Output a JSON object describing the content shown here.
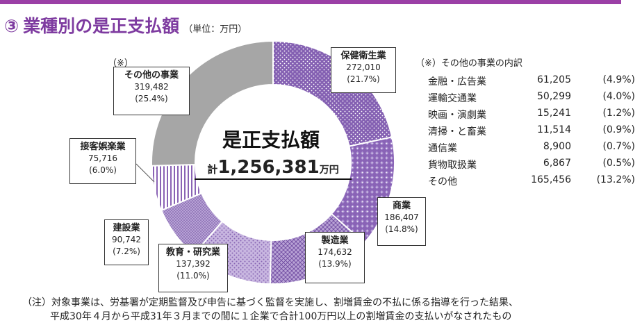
{
  "header": {
    "number": "③",
    "title": "業種別の是正支払額",
    "unit": "（単位：万円）"
  },
  "note_mark": "（※）",
  "center": {
    "title": "是正支払額",
    "total_prefix": "計",
    "total_value": "1,256,381",
    "total_suffix": "万円"
  },
  "breakdown": {
    "title": "（※）その他の事業の内訳",
    "rows": [
      {
        "name": "金融・広告業",
        "value": "61,205",
        "pct": "(4.9%)"
      },
      {
        "name": "運輸交通業",
        "value": "50,299",
        "pct": "(4.0%)"
      },
      {
        "name": "映画・演劇業",
        "value": "15,241",
        "pct": "(1.2%)"
      },
      {
        "name": "清掃・と畜業",
        "value": "11,514",
        "pct": "(0.9%)"
      },
      {
        "name": "通信業",
        "value": "8,900",
        "pct": "(0.7%)"
      },
      {
        "name": "貨物取扱業",
        "value": "6,867",
        "pct": "(0.5%)"
      },
      {
        "name": "その他",
        "value": "165,456",
        "pct": "(13.2%)"
      }
    ]
  },
  "footnote": {
    "line1": "（注）対象事業は、労基署が定期監督及び申告に基づく監督を実施し、割増賃金の不払に係る指導を行った結果、",
    "line2": "平成30年４月から平成31年３月までの間に１企業で合計100万円以上の割増賃金の支払いがなされたもの"
  },
  "chart_data": {
    "type": "pie",
    "donut": true,
    "total": 1256381,
    "unit": "万円",
    "slices": [
      {
        "name": "保健衛生業",
        "value": 272010,
        "value_label": "272,010",
        "pct": "(21.7%)",
        "pattern": "dots-dense",
        "color": "#8a63b5"
      },
      {
        "name": "商業",
        "value": 186407,
        "value_label": "186,407",
        "pct": "(14.8%)",
        "pattern": "diamond",
        "color": "#8a63b5"
      },
      {
        "name": "製造業",
        "value": 174632,
        "value_label": "174,632",
        "pct": "(13.9%)",
        "pattern": "crosshatch",
        "color": "#9b7cc1"
      },
      {
        "name": "教育・研究業",
        "value": 137392,
        "value_label": "137,392",
        "pct": "(11.0%)",
        "pattern": "dots-light",
        "color": "#b9a3d6"
      },
      {
        "name": "建設業",
        "value": 90742,
        "value_label": "90,742",
        "pct": "(7.2%)",
        "pattern": "fine-dots",
        "color": "#9f86c4"
      },
      {
        "name": "接客娯楽業",
        "value": 75716,
        "value_label": "75,716",
        "pct": "(6.0%)",
        "pattern": "vertical-lines",
        "color": "#8a63b5"
      },
      {
        "name": "その他の事業",
        "value": 319482,
        "value_label": "319,482",
        "pct": "(25.4%)",
        "pattern": "solid",
        "color": "#a6a6a6"
      }
    ]
  }
}
